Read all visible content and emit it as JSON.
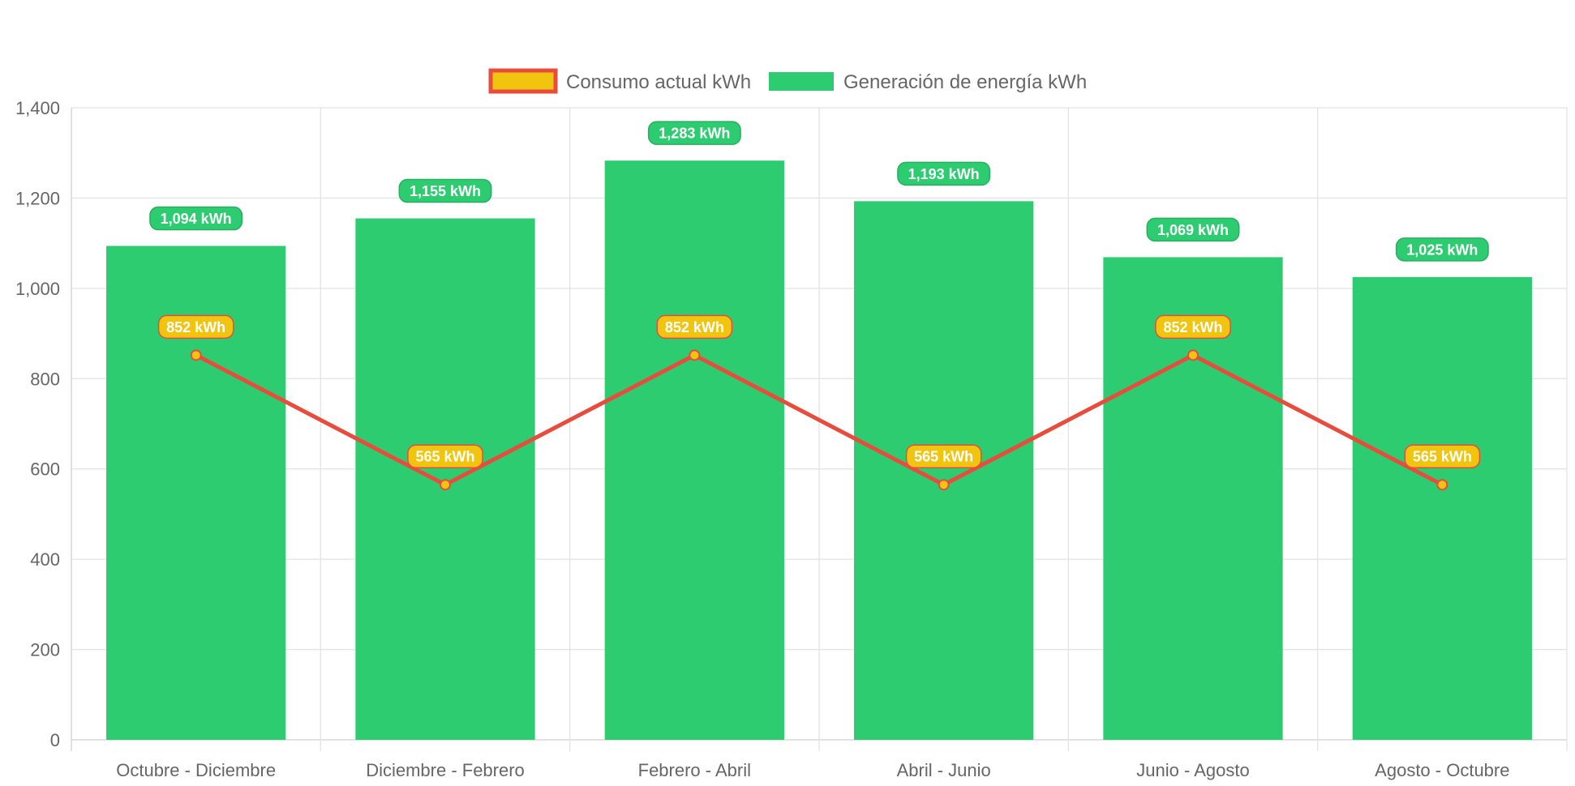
{
  "chart_data": {
    "type": "bar",
    "title": "",
    "xlabel": "",
    "ylabel": "",
    "categories": [
      "Octubre - Diciembre",
      "Diciembre - Febrero",
      "Febrero - Abril",
      "Abril - Junio",
      "Junio - Agosto",
      "Agosto - Octubre"
    ],
    "ylim": [
      0,
      1400
    ],
    "yticks": [
      "0",
      "200",
      "400",
      "600",
      "800",
      "1,000",
      "1,200",
      "1,400"
    ],
    "grid": true,
    "legend_position": "top",
    "series": [
      {
        "name": "Consumo actual kWh",
        "type": "line",
        "values": [
          852,
          565,
          852,
          565,
          852,
          565
        ],
        "labels": [
          "852 kWh",
          "565 kWh",
          "852 kWh",
          "565 kWh",
          "852 kWh",
          "565 kWh"
        ],
        "color": "#E74C3C",
        "fill_color": "#F1C40F"
      },
      {
        "name": "Generación de energía kWh",
        "type": "bar",
        "values": [
          1094,
          1155,
          1283,
          1193,
          1069,
          1025
        ],
        "labels": [
          "1,094 kWh",
          "1,155 kWh",
          "1,283 kWh",
          "1,193 kWh",
          "1,069 kWh",
          "1,025 kWh"
        ],
        "color": "#2ECC71",
        "label_color": "#27AE60"
      }
    ]
  }
}
